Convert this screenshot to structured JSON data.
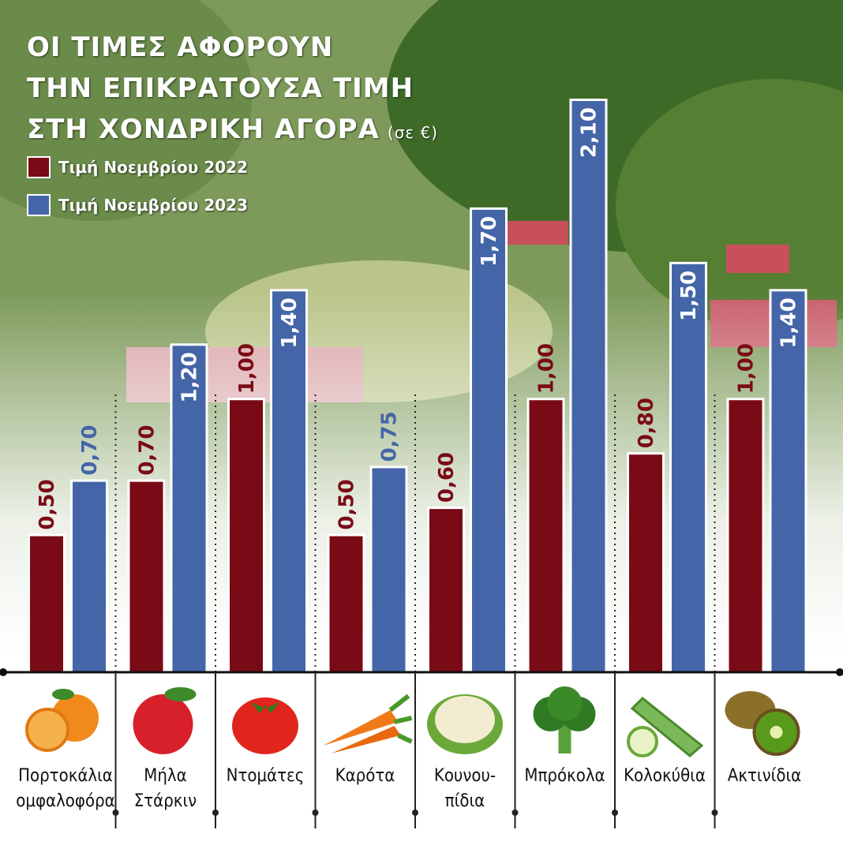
{
  "title_lines": [
    "ΟΙ ΤΙΜΕΣ ΑΦΟΡΟΥΝ",
    "ΤΗΝ ΕΠΙΚΡΑΤΟΥΣΑ ΤΙΜΗ",
    "ΣΤΗ ΧΟΝΔΡΙΚΗ ΑΓΟΡΑ"
  ],
  "unit": "(σε €)",
  "colors": {
    "series_2022": "#7a0a16",
    "series_2023": "#4466a8",
    "axis": "#111111"
  },
  "chart_data": {
    "type": "bar",
    "categories": [
      "Πορτοκάλια ομφαλοφόρα",
      "Μήλα Στάρκιν",
      "Ντομάτες",
      "Καρότα",
      "Κουνουπίδια",
      "Μπρόκολα",
      "Κολοκύθια",
      "Ακτινίδια"
    ],
    "category_lines": [
      [
        "Πορτοκάλια",
        "ομφαλοφόρα"
      ],
      [
        "Μήλα",
        "Στάρκιν"
      ],
      [
        "Ντομάτες"
      ],
      [
        "Καρότα"
      ],
      [
        "Κουνου-",
        "πίδια"
      ],
      [
        "Μπρόκολα"
      ],
      [
        "Κολοκύθια"
      ],
      [
        "Ακτινίδια"
      ]
    ],
    "series": [
      {
        "name": "Τιμή Νοεμβρίου 2022",
        "values": [
          0.5,
          0.7,
          1.0,
          0.5,
          0.6,
          1.0,
          0.8,
          1.0
        ],
        "labels": [
          "0,50",
          "0,70",
          "1,00",
          "0,50",
          "0,60",
          "1,00",
          "0,80",
          "1,00"
        ]
      },
      {
        "name": "Τιμή Νοεμβρίου 2023",
        "values": [
          0.7,
          1.2,
          1.4,
          0.75,
          1.7,
          2.1,
          1.5,
          1.4
        ],
        "labels": [
          "0,70",
          "1,20",
          "1,40",
          "0,75",
          "1,70",
          "2,10",
          "1,50",
          "1,40"
        ]
      }
    ],
    "ylim": [
      0,
      2.1
    ],
    "grid": false,
    "legend": "top-left"
  },
  "icons": [
    "orange-icon",
    "apple-icon",
    "tomato-icon",
    "carrot-icon",
    "cauliflower-icon",
    "broccoli-icon",
    "zucchini-icon",
    "kiwi-icon"
  ]
}
